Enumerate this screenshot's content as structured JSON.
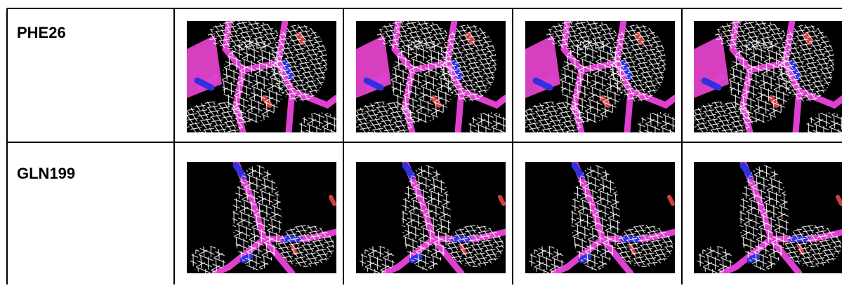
{
  "table": {
    "rows": [
      [
        "PHE26"
      ],
      [
        "GLN199"
      ]
    ]
  }
}
